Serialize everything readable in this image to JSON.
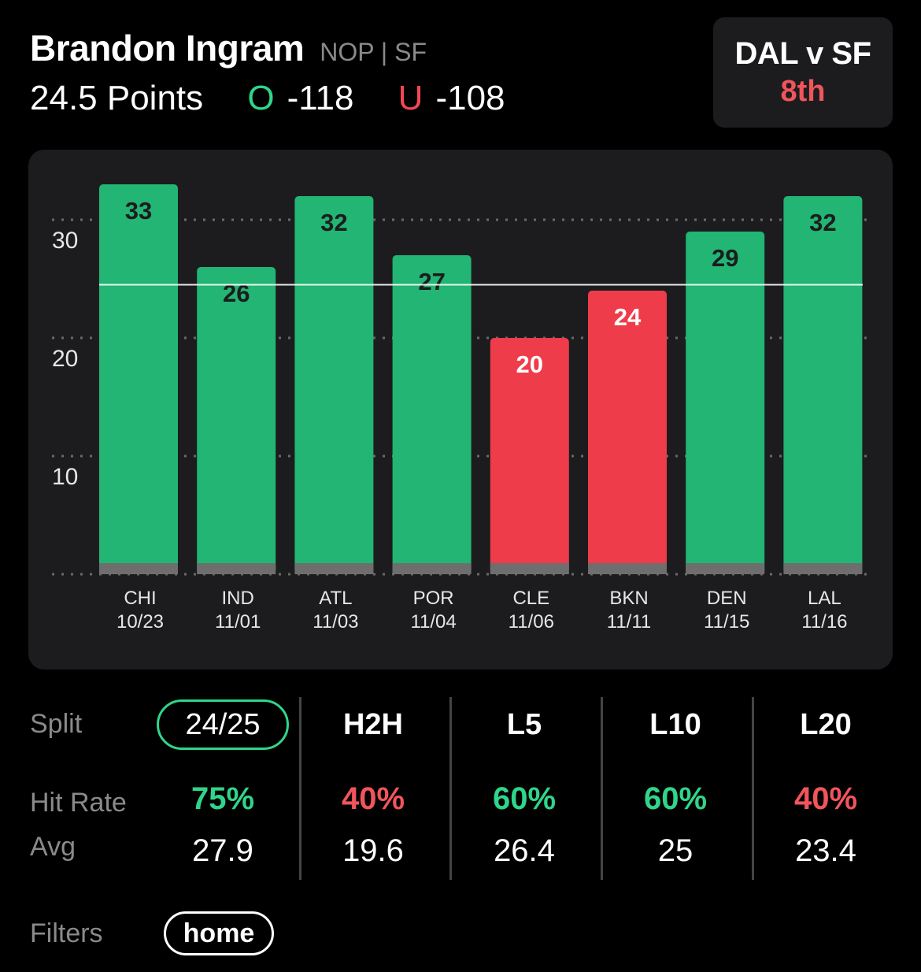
{
  "header": {
    "player_name": "Brandon Ingram",
    "team_info": "NOP | SF",
    "line": "24.5 Points",
    "over_label": "O",
    "over_odds": "-118",
    "under_label": "U",
    "under_odds": "-108"
  },
  "game": {
    "matchup": "DAL v SF",
    "period": "8th"
  },
  "colors": {
    "hit": "#22b573",
    "miss": "#ef3c4a",
    "over_accent": "#2fd58a",
    "under_accent": "#f24752"
  },
  "chart_data": {
    "type": "bar",
    "categories": [
      "CHI",
      "IND",
      "ATL",
      "POR",
      "CLE",
      "BKN",
      "DEN",
      "LAL"
    ],
    "dates": [
      "10/23",
      "11/01",
      "11/03",
      "11/04",
      "11/06",
      "11/11",
      "11/15",
      "11/16"
    ],
    "values": [
      33,
      26,
      32,
      27,
      20,
      24,
      29,
      32
    ],
    "threshold": 24.5,
    "yticks": [
      10,
      20,
      30
    ],
    "ylim": [
      0,
      35
    ],
    "grid": true
  },
  "stats": {
    "split_label": "Split",
    "hit_rate_label": "Hit Rate",
    "avg_label": "Avg",
    "columns": [
      {
        "label": "24/25",
        "hit_rate": "75%",
        "avg": "27.9",
        "hit": true,
        "active": true
      },
      {
        "label": "H2H",
        "hit_rate": "40%",
        "avg": "19.6",
        "hit": false,
        "active": false
      },
      {
        "label": "L5",
        "hit_rate": "60%",
        "avg": "26.4",
        "hit": true,
        "active": false
      },
      {
        "label": "L10",
        "hit_rate": "60%",
        "avg": "25",
        "hit": true,
        "active": false
      },
      {
        "label": "L20",
        "hit_rate": "40%",
        "avg": "23.4",
        "hit": false,
        "active": false
      }
    ]
  },
  "filters": {
    "label": "Filters",
    "chip": "home"
  }
}
